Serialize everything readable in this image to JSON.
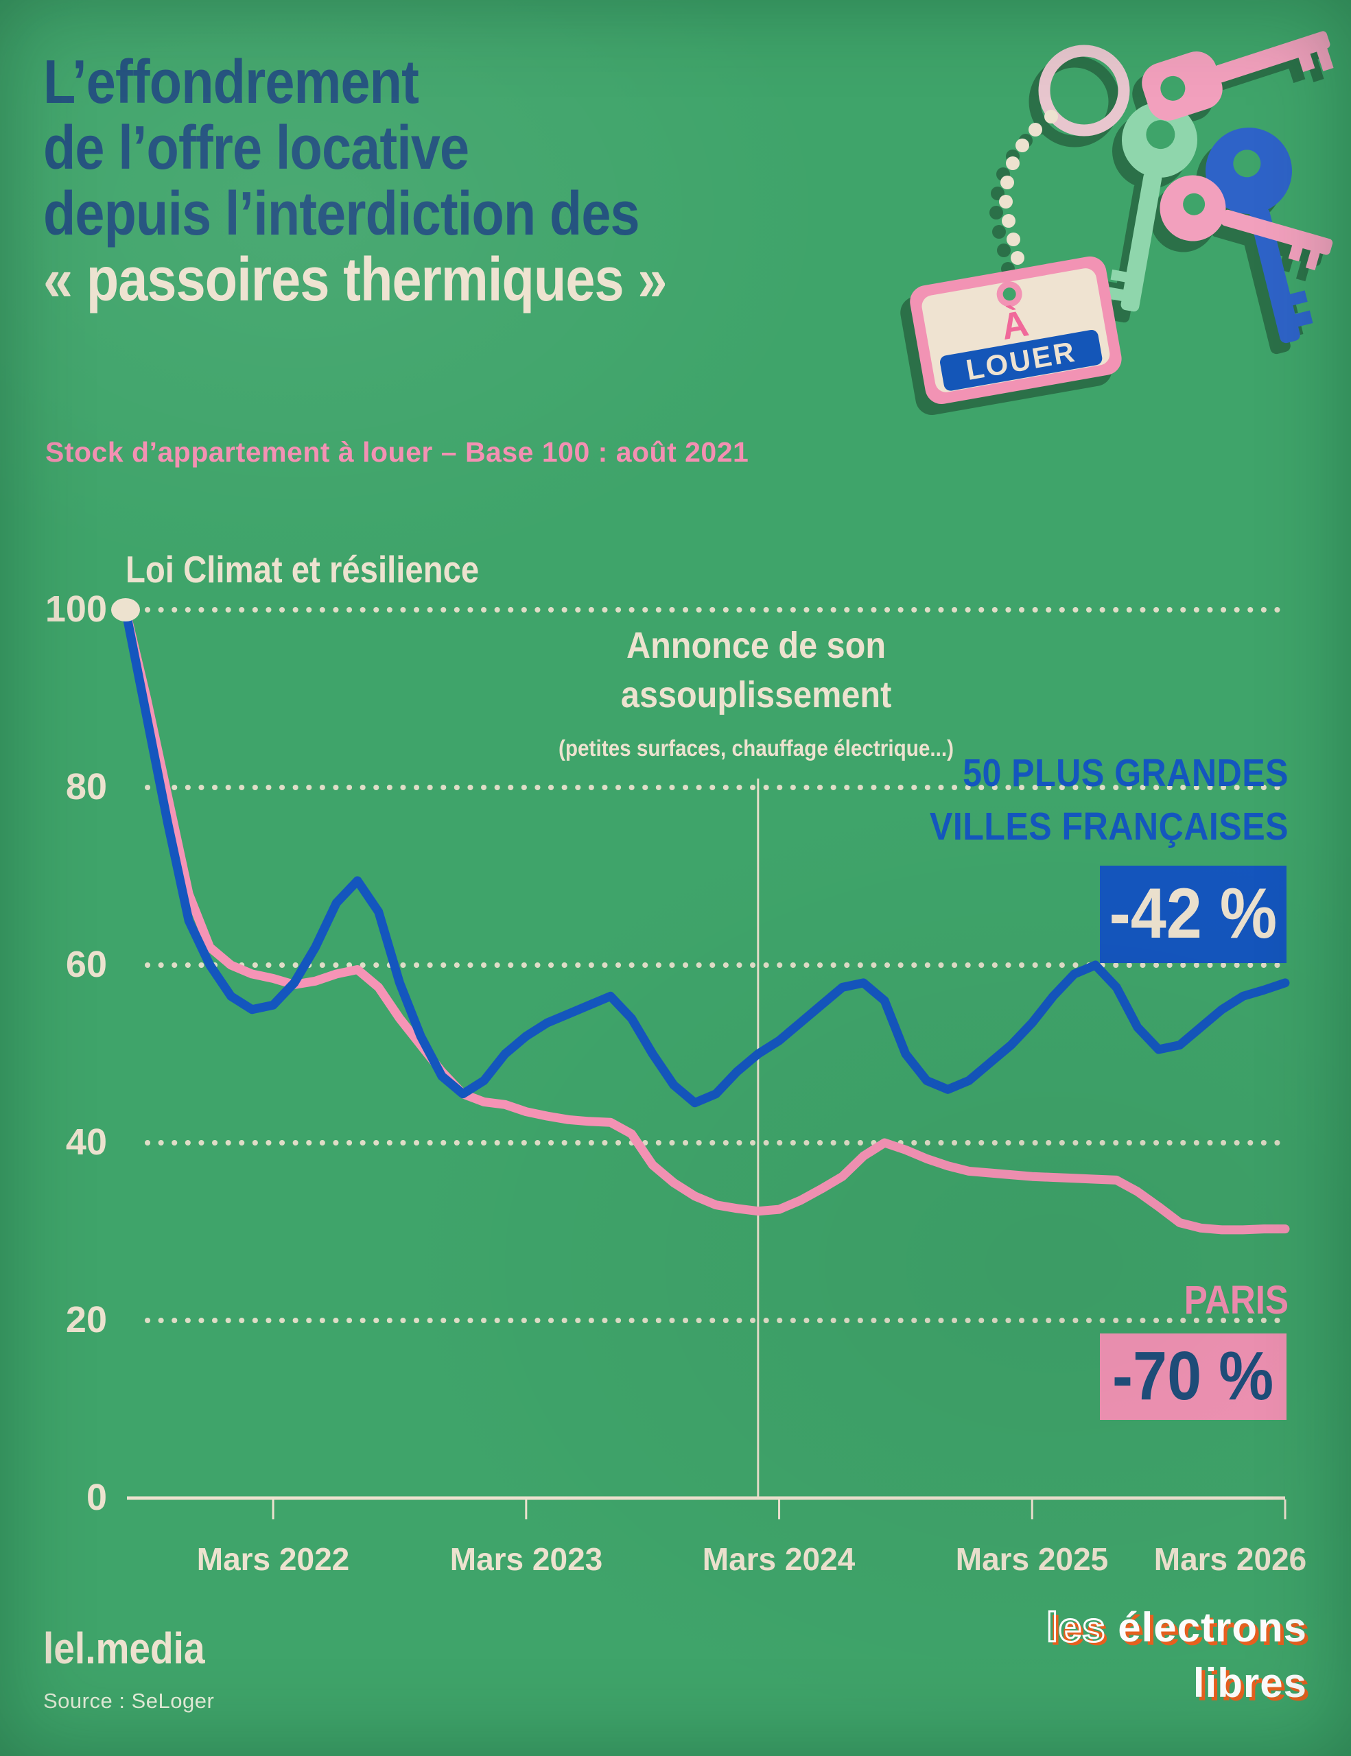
{
  "page": {
    "background": "#3FA46A"
  },
  "colors": {
    "background": "#3FA46A",
    "navy": "#1F4F7C",
    "cream": "#EDE2CF",
    "blue": "#1456BE",
    "pink": "#F694B6",
    "orange": "#E9601F"
  },
  "header": {
    "title_line1": "L’effondrement",
    "title_line2": "de l’offre locative",
    "title_line3": "depuis l’interdiction des",
    "title_highlight": "« passoires thermiques »",
    "subtitle": "Stock d’appartement à louer – Base 100 : août 2021"
  },
  "annotations": {
    "law_label": "Loi Climat et résilience",
    "easing_line1": "Annonce de son",
    "easing_line2": "assouplissement",
    "easing_sub": "(petites surfaces, chauffage électrique...)"
  },
  "series_labels": {
    "cities_line1": "50 PLUS GRANDES",
    "cities_line2": "VILLES FRANÇAISES",
    "cities_badge": "-42 %",
    "paris_label": "PARIS",
    "paris_badge": "-70 %"
  },
  "axis": {
    "y_ticks": [
      "100",
      "80",
      "60",
      "40",
      "20",
      "0"
    ],
    "x_ticks": [
      "Mars 2022",
      "Mars 2023",
      "Mars 2024",
      "Mars 2025",
      "Mars 2026"
    ]
  },
  "tag": {
    "top": "À",
    "band": "LOUER"
  },
  "footer": {
    "brand": "lel.media",
    "source": "Source : SeLoger",
    "logo_word1": "les",
    "logo_word2": "électrons",
    "logo_word3": "libres"
  },
  "chart_data": {
    "type": "line",
    "title": "L’effondrement de l’offre locative depuis l’interdiction des « passoires thermiques »",
    "subtitle": "Stock d’appartement à louer – Base 100 : août 2021",
    "x_axis": {
      "unit": "month",
      "start_label": "août 2021",
      "tick_labels": [
        "Mars 2022",
        "Mars 2023",
        "Mars 2024",
        "Mars 2025",
        "Mars 2026"
      ],
      "tick_months": [
        7,
        19,
        31,
        43,
        55
      ],
      "range_months": [
        0,
        55
      ]
    },
    "y_axis": {
      "label": "Base 100 : août 2021",
      "ticks": [
        0,
        20,
        40,
        60,
        80,
        100
      ],
      "ylim": [
        0,
        100
      ],
      "grid": "dotted"
    },
    "start_marker": {
      "month": 0,
      "value": 100,
      "label": "Loi Climat et résilience"
    },
    "event_line": {
      "month": 30,
      "label": "Annonce de son assouplissement (petites surfaces, chauffage électrique...)"
    },
    "series": [
      {
        "name": "50 plus grandes villes françaises",
        "color": "#1456BE",
        "final_change": "-42 %",
        "values": [
          100,
          88,
          76,
          65,
          60,
          56.5,
          55,
          55.5,
          58,
          62,
          67,
          69.5,
          66,
          58,
          52,
          47.5,
          45.5,
          47,
          50,
          52,
          53.5,
          54.5,
          55.5,
          56.5,
          54,
          50,
          46.5,
          44.5,
          45.5,
          48,
          50,
          51.5,
          53.5,
          55.5,
          57.5,
          58,
          56,
          50,
          47,
          46,
          47,
          49,
          51,
          53.5,
          56.5,
          59,
          60,
          57.5,
          53,
          50.5,
          51,
          53,
          55,
          56.5,
          57.2,
          58
        ]
      },
      {
        "name": "Paris",
        "color": "#F694B6",
        "final_change": "-70 %",
        "values": [
          100,
          90,
          79,
          68,
          62,
          60,
          59,
          58.5,
          57.8,
          58.2,
          59,
          59.5,
          57.5,
          54,
          51,
          48,
          45.5,
          44.6,
          44.3,
          43.5,
          43,
          42.6,
          42.4,
          42.3,
          41,
          37.5,
          35.5,
          34,
          33,
          32.6,
          32.3,
          32.5,
          33.5,
          34.8,
          36.2,
          38.5,
          40,
          39.2,
          38.2,
          37.4,
          36.8,
          36.6,
          36.4,
          36.2,
          36.1,
          36,
          35.9,
          35.8,
          34.5,
          32.8,
          31,
          30.4,
          30.2,
          30.2,
          30.3,
          30.3
        ]
      }
    ]
  }
}
